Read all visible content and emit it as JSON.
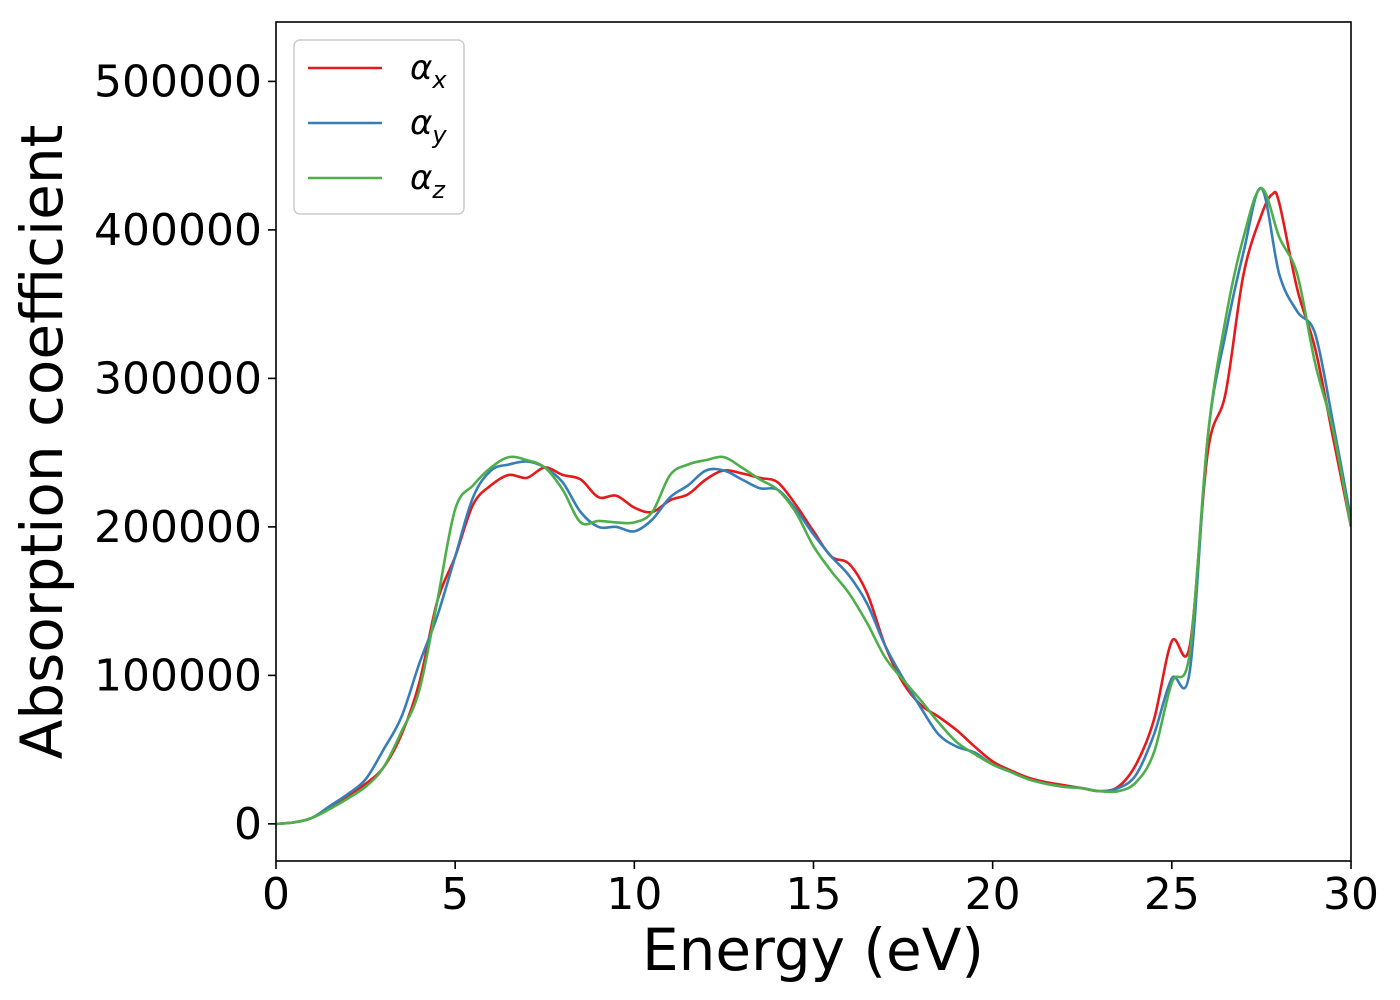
{
  "chart_data": {
    "type": "line",
    "title": "",
    "xlabel": "Energy (eV)",
    "ylabel": "Absorption coefficient",
    "xlim": [
      0,
      30
    ],
    "ylim": [
      -25000,
      540000
    ],
    "xticks": [
      0,
      5,
      10,
      15,
      20,
      25,
      30
    ],
    "xtick_labels": [
      "0",
      "5",
      "10",
      "15",
      "20",
      "25",
      "30"
    ],
    "yticks": [
      0,
      100000,
      200000,
      300000,
      400000,
      500000
    ],
    "ytick_labels": [
      "0",
      "100000",
      "200000",
      "300000",
      "400000",
      "500000"
    ],
    "grid": false,
    "legend_position": "top-left",
    "series": [
      {
        "name": "α",
        "subscript": "x",
        "color": "#e41a1c",
        "x": [
          0,
          0.5,
          1,
          1.5,
          2,
          2.5,
          3,
          3.5,
          4,
          4.5,
          5,
          5.5,
          6,
          6.5,
          7,
          7.5,
          8,
          8.5,
          9,
          9.5,
          10,
          10.5,
          11,
          11.5,
          12,
          12.5,
          13,
          13.5,
          14,
          14.5,
          15,
          15.5,
          16,
          16.5,
          17,
          17.5,
          18,
          18.5,
          19,
          19.5,
          20,
          20.5,
          21,
          21.5,
          22,
          22.5,
          23,
          23.5,
          24,
          24.5,
          25,
          25.5,
          26,
          26.5,
          27,
          27.5,
          27.8,
          28,
          28.5,
          29,
          29.5,
          30
        ],
        "values": [
          0,
          1000,
          4000,
          11000,
          19000,
          27000,
          38000,
          60000,
          95000,
          150000,
          180000,
          215000,
          228000,
          235000,
          233000,
          240000,
          235000,
          232000,
          220000,
          221000,
          213000,
          210000,
          218000,
          222000,
          232000,
          238000,
          236000,
          233000,
          230000,
          215000,
          197000,
          180000,
          175000,
          155000,
          120000,
          95000,
          80000,
          72000,
          63000,
          52000,
          42000,
          36000,
          31000,
          28000,
          26000,
          24000,
          22000,
          25000,
          40000,
          70000,
          123000,
          120000,
          250000,
          290000,
          370000,
          410000,
          424000,
          418000,
          360000,
          320000,
          260000,
          200000
        ]
      },
      {
        "name": "α",
        "subscript": "y",
        "color": "#377eb8",
        "x": [
          0,
          0.5,
          1,
          1.5,
          2,
          2.5,
          3,
          3.5,
          4,
          4.5,
          5,
          5.5,
          6,
          6.5,
          7,
          7.5,
          8,
          8.5,
          9,
          9.5,
          10,
          10.5,
          11,
          11.5,
          12,
          12.5,
          13,
          13.5,
          14,
          14.5,
          15,
          15.5,
          16,
          16.5,
          17,
          17.5,
          18,
          18.5,
          19,
          19.5,
          20,
          20.5,
          21,
          21.5,
          22,
          22.5,
          23,
          23.5,
          24,
          24.5,
          25,
          25.5,
          26,
          26.5,
          27,
          27.5,
          28,
          28.5,
          29,
          29.5,
          30
        ],
        "values": [
          0,
          1000,
          4000,
          12000,
          20000,
          30000,
          50000,
          72000,
          108000,
          140000,
          180000,
          220000,
          238000,
          242000,
          244000,
          240000,
          230000,
          210000,
          200000,
          200000,
          197000,
          205000,
          220000,
          228000,
          238000,
          238000,
          232000,
          226000,
          225000,
          212000,
          195000,
          180000,
          167000,
          148000,
          120000,
          98000,
          78000,
          60000,
          52000,
          48000,
          40000,
          35000,
          30000,
          27000,
          25000,
          24000,
          22000,
          24000,
          33000,
          60000,
          98000,
          103000,
          260000,
          330000,
          385000,
          428000,
          370000,
          345000,
          330000,
          270000,
          205000
        ]
      },
      {
        "name": "α",
        "subscript": "z",
        "color": "#4daf4a",
        "x": [
          0,
          0.5,
          1,
          1.5,
          2,
          2.5,
          3,
          3.5,
          4,
          4.5,
          5,
          5.5,
          6,
          6.5,
          7,
          7.5,
          8,
          8.5,
          9,
          9.5,
          10,
          10.5,
          11,
          11.5,
          12,
          12.5,
          13,
          13.5,
          14,
          14.5,
          15,
          15.5,
          16,
          16.5,
          17,
          17.5,
          18,
          18.5,
          19,
          19.5,
          20,
          20.5,
          21,
          21.5,
          22,
          22.5,
          23,
          23.5,
          24,
          24.5,
          25,
          25.5,
          26,
          26.5,
          27,
          27.5,
          28,
          28.5,
          29,
          29.5,
          30
        ],
        "values": [
          0,
          1000,
          4000,
          10000,
          17000,
          25000,
          38000,
          62000,
          90000,
          150000,
          212000,
          228000,
          240000,
          247000,
          245000,
          240000,
          225000,
          203000,
          204000,
          203000,
          203000,
          210000,
          235000,
          242000,
          245000,
          247000,
          240000,
          232000,
          225000,
          210000,
          187000,
          170000,
          155000,
          135000,
          112000,
          97000,
          83000,
          68000,
          55000,
          47000,
          40000,
          35000,
          30000,
          27000,
          25000,
          24000,
          22000,
          22000,
          28000,
          48000,
          95000,
          115000,
          260000,
          340000,
          395000,
          428000,
          395000,
          370000,
          310000,
          265000,
          200000
        ]
      }
    ]
  }
}
